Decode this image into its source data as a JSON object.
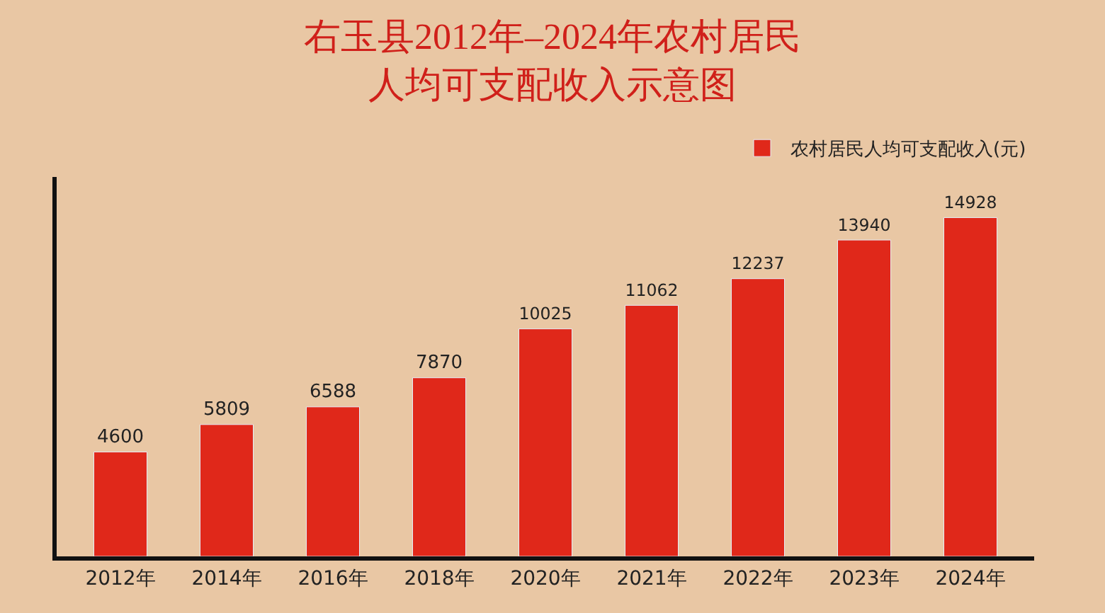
{
  "chart_data": {
    "type": "bar",
    "title": "右玉县2012年–2024年农村居民",
    "subtitle": "人均可支配收入示意图",
    "categories": [
      "2012年",
      "2014年",
      "2016年",
      "2018年",
      "2020年",
      "2021年",
      "2022年",
      "2023年",
      "2024年"
    ],
    "series": [
      {
        "name": "农村居民人均可支配收入(元)",
        "color": "#e0281a",
        "values": [
          4600,
          5809,
          6588,
          7870,
          10025,
          11062,
          12237,
          13940,
          14928
        ]
      }
    ],
    "data_labels": true,
    "legend": "top right",
    "grid": false
  }
}
